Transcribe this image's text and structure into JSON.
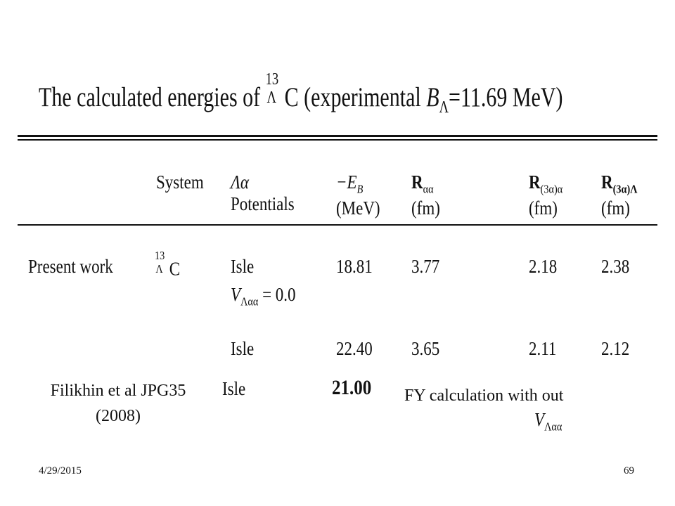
{
  "title": {
    "prefix": "The calculated energies of ",
    "mass": "13",
    "hyperon": "Λ",
    "element": "C",
    "middle": " (experimental ",
    "symbol": "B",
    "symbol_sub": "Λ",
    "suffix": "=11.69 MeV)"
  },
  "table": {
    "headers": [
      {
        "line1": "System"
      },
      {
        "line1": "Λα",
        "line2": "Potentials"
      },
      {
        "line1": "−E",
        "sub": "B",
        "line2": "(MeV)"
      },
      {
        "line1": "R",
        "sub": "αα",
        "line2": "(fm)"
      },
      {
        "line1": "R",
        "sub": "(3α)α",
        "line2": "(fm)"
      },
      {
        "line1": "R",
        "sub": "(3α)Λ",
        "line2": "(fm)"
      }
    ],
    "rows": [
      {
        "label": "Present work",
        "system": {
          "mass": "13",
          "hyperon": "Λ",
          "element": "C"
        },
        "potential": "Isle",
        "note": {
          "symbol": "V",
          "sub": "Λαα",
          "rest": " = 0.0"
        },
        "values": [
          "18.81",
          "3.77",
          "2.18",
          "2.38"
        ]
      },
      {
        "potential": "Isle",
        "values": [
          "22.40",
          "3.65",
          "2.11",
          "2.12"
        ]
      }
    ]
  },
  "comparison": {
    "label": [
      "Filikhin et al JPG35",
      "(2008)"
    ],
    "potential": "Isle",
    "energy": "21.00",
    "note": "FY calculation with out",
    "note_symbol": "V",
    "note_sub": "Λαα"
  },
  "footer": {
    "date": "4/29/2015",
    "page": "69"
  }
}
